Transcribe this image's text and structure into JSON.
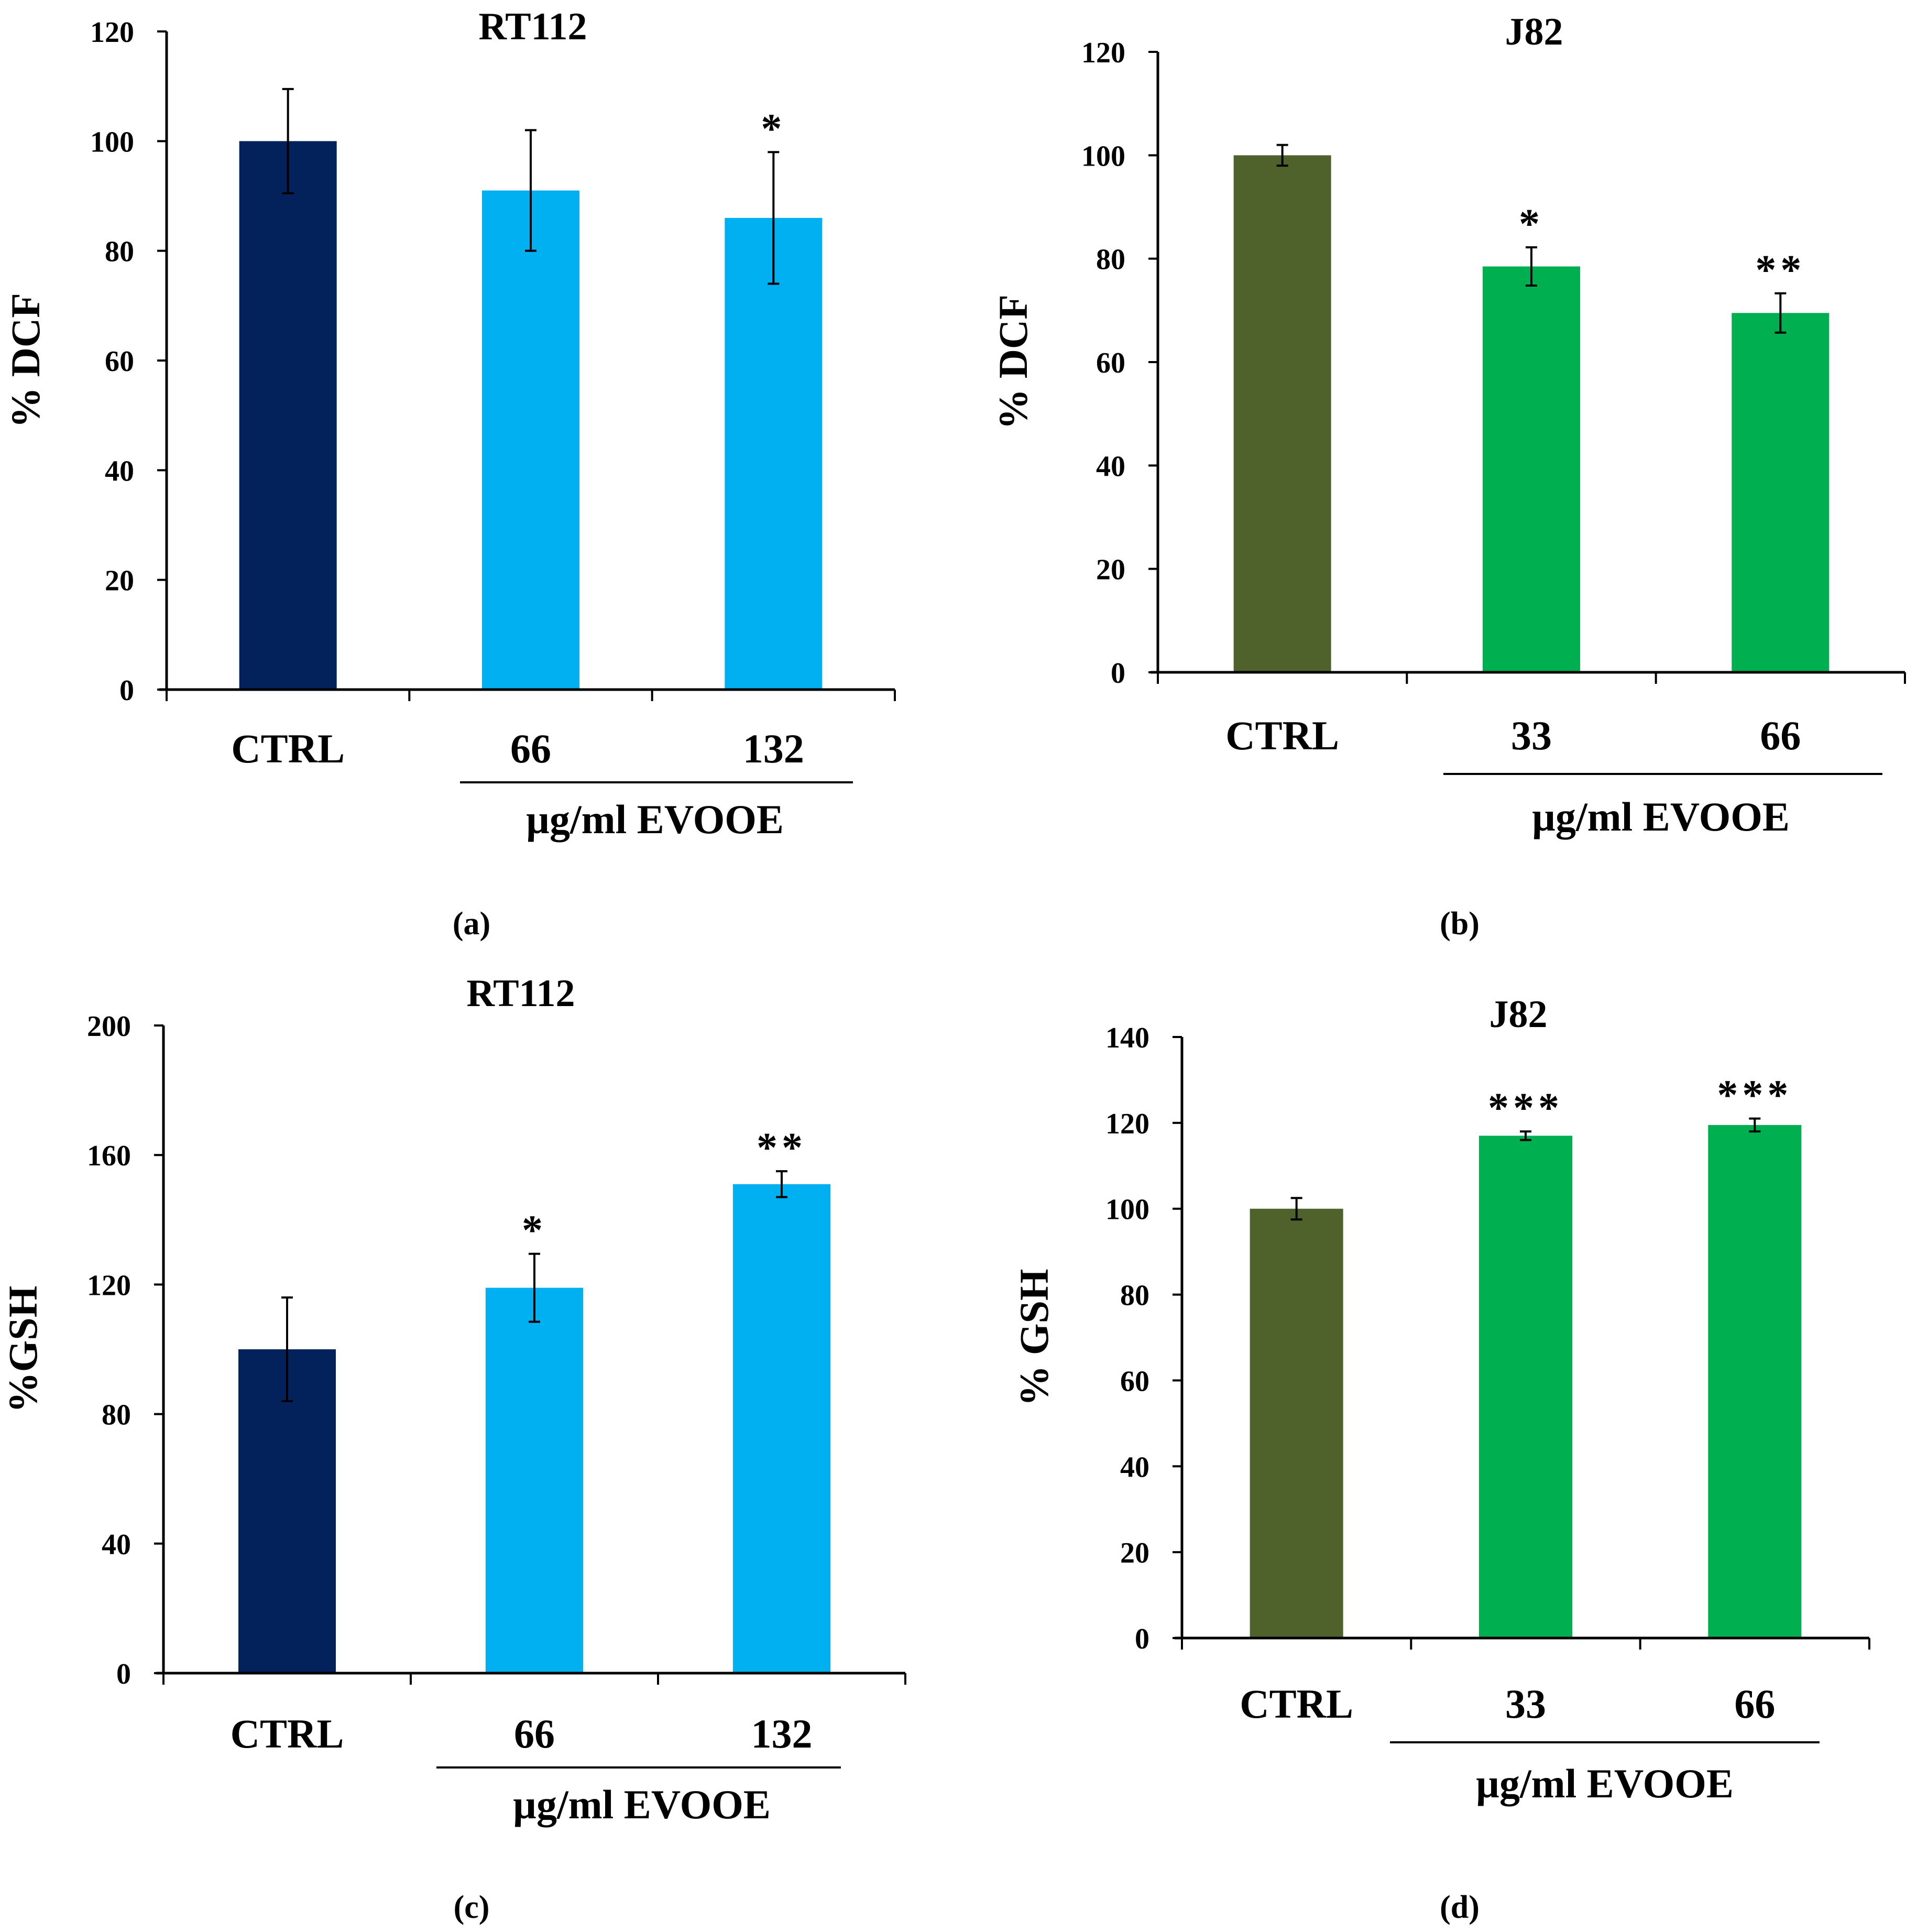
{
  "chart_data": [
    {
      "type": "bar",
      "title": "RT112",
      "ylabel": "% DCF",
      "categories": [
        "CTRL",
        "66",
        "132"
      ],
      "values": [
        100,
        91,
        86
      ],
      "errors": [
        9.5,
        11,
        12
      ],
      "significance": [
        "",
        "",
        "*"
      ],
      "bar_colors": [
        "#03215a",
        "#00b0f0",
        "#00b0f0"
      ],
      "group_label": "µg/ml EVOOE",
      "ylim": [
        0,
        120
      ],
      "yticks": [
        "0",
        "20",
        "40",
        "60",
        "80",
        "100",
        "120"
      ],
      "panel_label": "(a)"
    },
    {
      "type": "bar",
      "title": "J82",
      "ylabel": "% DCF",
      "categories": [
        "CTRL",
        "33",
        "66"
      ],
      "values": [
        100,
        78.5,
        69.5
      ],
      "errors": [
        2,
        3.7,
        3.8
      ],
      "significance": [
        "",
        "*",
        "**"
      ],
      "bar_colors": [
        "#4f622b",
        "#00b050",
        "#00b050"
      ],
      "group_label": "µg/ml EVOOE",
      "ylim": [
        0,
        120
      ],
      "yticks": [
        "0",
        "20",
        "40",
        "60",
        "80",
        "100",
        "120"
      ],
      "panel_label": "(b)"
    },
    {
      "type": "bar",
      "title": "RT112",
      "ylabel": "%GSH",
      "categories": [
        "CTRL",
        "66",
        "132"
      ],
      "values": [
        100,
        119,
        151
      ],
      "errors": [
        16,
        10.5,
        4
      ],
      "significance": [
        "",
        "*",
        "**"
      ],
      "bar_colors": [
        "#03215a",
        "#00b0f0",
        "#00b0f0"
      ],
      "group_label": "µg/ml EVOOE",
      "ylim": [
        0,
        200
      ],
      "yticks": [
        "0",
        "40",
        "80",
        "120",
        "160",
        "200"
      ],
      "panel_label": "(c)"
    },
    {
      "type": "bar",
      "title": "J82",
      "ylabel": "% GSH",
      "categories": [
        "CTRL",
        "33",
        "66"
      ],
      "values": [
        100,
        117,
        119.5
      ],
      "errors": [
        2.5,
        1,
        1.5
      ],
      "significance": [
        "",
        "***",
        "***"
      ],
      "bar_colors": [
        "#4f622b",
        "#00b050",
        "#00b050"
      ],
      "group_label": "µg/ml EVOOE",
      "ylim": [
        0,
        140
      ],
      "yticks": [
        "0",
        "20",
        "40",
        "60",
        "80",
        "100",
        "120",
        "140"
      ],
      "panel_label": "(d)"
    }
  ]
}
